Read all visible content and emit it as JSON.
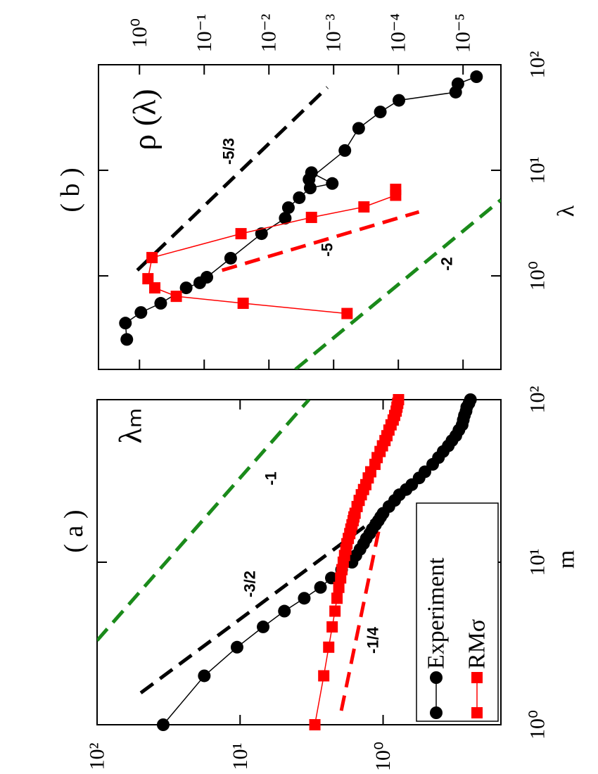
{
  "chart_data": [
    {
      "type": "line",
      "title": "( a )",
      "x_label": "m",
      "y_label": "λₘ",
      "xscale": "log",
      "yscale": "log",
      "xlim": [
        1,
        100
      ],
      "ylim": [
        0.15,
        100
      ],
      "xticks": [
        {
          "value": 1,
          "label": "10⁰"
        },
        {
          "value": 10,
          "label": "10¹"
        },
        {
          "value": 100,
          "label": "10²"
        }
      ],
      "yticks": [
        {
          "value": 1,
          "label": "10⁰"
        },
        {
          "value": 10,
          "label": "10¹"
        },
        {
          "value": 100,
          "label": "10²"
        }
      ],
      "legend": "lower-right",
      "series": [
        {
          "name": "Experiment",
          "color": "#000000",
          "marker": "circle",
          "x": [
            1,
            2,
            3,
            4,
            5,
            6,
            7,
            8,
            9,
            10,
            11,
            12,
            13,
            14,
            15,
            16,
            17,
            18,
            19,
            20,
            22,
            24,
            26,
            28,
            30,
            33,
            36,
            40,
            44,
            48,
            52,
            56,
            60,
            65,
            70,
            75,
            80,
            85,
            90,
            95,
            100
          ],
          "values": [
            34.5,
            17.8,
            10.5,
            6.9,
            4.9,
            3.56,
            2.74,
            2.3,
            1.95,
            1.65,
            1.55,
            1.45,
            1.37,
            1.31,
            1.24,
            1.19,
            1.13,
            1.08,
            1.04,
            1.0,
            0.91,
            0.83,
            0.77,
            0.69,
            0.63,
            0.56,
            0.51,
            0.45,
            0.41,
            0.38,
            0.35,
            0.33,
            0.31,
            0.295,
            0.28,
            0.275,
            0.27,
            0.263,
            0.26,
            0.251,
            0.245
          ]
        },
        {
          "name": "RMσ",
          "color": "#ff0000",
          "marker": "square",
          "x": [
            1,
            2,
            3,
            4,
            5,
            6,
            7,
            8,
            9,
            10,
            11,
            12,
            13,
            14,
            15,
            16,
            17,
            18,
            19,
            20,
            22,
            24,
            26,
            28,
            30,
            33,
            36,
            40,
            44,
            48,
            52,
            56,
            60,
            65,
            70,
            75,
            80,
            85,
            90,
            95,
            100
          ],
          "values": [
            3.0,
            2.6,
            2.4,
            2.27,
            2.17,
            2.1,
            2.04,
            1.98,
            1.94,
            1.9,
            1.86,
            1.82,
            1.79,
            1.75,
            1.71,
            1.68,
            1.65,
            1.62,
            1.6,
            1.57,
            1.52,
            1.47,
            1.42,
            1.37,
            1.32,
            1.27,
            1.22,
            1.14,
            1.1,
            1.05,
            1.01,
            0.97,
            0.94,
            0.91,
            0.88,
            0.85,
            0.83,
            0.81,
            0.8,
            0.79,
            0.78
          ]
        }
      ],
      "lines": [
        {
          "label": "-3/2",
          "color": "#000000",
          "x": [
            1.57,
            18.9
          ],
          "y": [
            49.5,
            1.1
          ]
        },
        {
          "label": "-1",
          "color": "#1a8a1a",
          "x": [
            3.3,
            100
          ],
          "y": [
            100,
            3.3
          ]
        },
        {
          "label": "-1/4",
          "color": "#ff0000",
          "x": [
            1.22,
            17.1
          ],
          "y": [
            1.96,
            1.05
          ]
        }
      ]
    },
    {
      "type": "line",
      "title": "( b )",
      "x_label": "λ",
      "y_label": "ρ (λ)",
      "xscale": "log",
      "yscale": "log",
      "xlim": [
        0.13,
        100
      ],
      "ylim": [
        2.6e-06,
        4.3
      ],
      "xticks": [
        {
          "value": 1,
          "label": "10⁰"
        },
        {
          "value": 10,
          "label": "10¹"
        },
        {
          "value": 100,
          "label": "10²"
        }
      ],
      "yticks": [
        {
          "value": 1,
          "label": "10⁰"
        },
        {
          "value": 0.1,
          "label": "10⁻¹"
        },
        {
          "value": 0.01,
          "label": "10⁻²"
        },
        {
          "value": 0.001,
          "label": "10⁻³"
        },
        {
          "value": 0.0001,
          "label": "10⁻⁴"
        },
        {
          "value": 1e-05,
          "label": "10⁻⁵"
        }
      ],
      "series": [
        {
          "color": "#000000",
          "marker": "circle",
          "x": [
            0.25,
            0.357,
            0.45,
            0.55,
            0.77,
            0.86,
            0.97,
            1.47,
            2.51,
            3.52,
            4.43,
            5.5,
            6.8,
            7.5,
            9.5,
            8.2,
            15.4,
            25,
            35.7,
            46,
            55,
            66,
            77
          ],
          "values": [
            1.57,
            1.65,
            0.95,
            0.47,
            0.19,
            0.117,
            0.091,
            0.039,
            0.013,
            0.0056,
            0.005,
            0.0034,
            0.0023,
            0.00105,
            0.0022,
            0.0024,
            0.00067,
            0.00041,
            0.00019,
            9.8e-05,
            1.3e-05,
            1.2e-05,
            6.2e-06
          ]
        },
        {
          "color": "#ff0000",
          "marker": "square",
          "x": [
            0.44,
            0.55,
            0.64,
            0.77,
            0.94,
            1.49,
            2.51,
            3.58,
            4.5,
            5.8,
            6.6
          ],
          "values": [
            0.00062,
            0.025,
            0.27,
            0.58,
            0.74,
            0.64,
            0.027,
            0.0022,
            0.00034,
            0.00011,
            0.00011
          ]
        }
      ],
      "lines": [
        {
          "label": "-5/3",
          "color": "#000000",
          "x": [
            1.13,
            61
          ],
          "y": [
            1.08,
            0.00125
          ]
        },
        {
          "label": "-5",
          "color": "#ff0000",
          "x": [
            1.13,
            4.04
          ],
          "y": [
            0.053,
            4.8e-05
          ]
        },
        {
          "label": "-2",
          "color": "#1a8a1a",
          "x": [
            0.13,
            5.25
          ],
          "y": [
            0.0039,
            2.6e-06
          ]
        }
      ]
    }
  ]
}
